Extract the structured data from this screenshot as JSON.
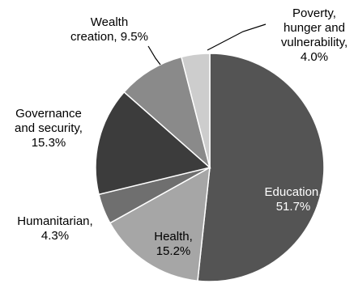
{
  "chart_data": {
    "type": "pie",
    "title": "",
    "start_angle_deg": 0,
    "direction": "clockwise",
    "slices": [
      {
        "label_lines": [
          "Education,",
          "51.7%"
        ],
        "category": "Education",
        "value": 51.7,
        "color": "#545454",
        "label_color": "#ffffff"
      },
      {
        "label_lines": [
          "Health,",
          "15.2%"
        ],
        "category": "Health",
        "value": 15.2,
        "color": "#a6a6a6",
        "label_color": "#000000"
      },
      {
        "label_lines": [
          "Humanitarian,",
          "4.3%"
        ],
        "category": "Humanitarian",
        "value": 4.3,
        "color": "#6f6f6f",
        "label_color": "#000000"
      },
      {
        "label_lines": [
          "Governance",
          "and security,",
          "15.3%"
        ],
        "category": "Governance and security",
        "value": 15.3,
        "color": "#3c3c3c",
        "label_color": "#000000"
      },
      {
        "label_lines": [
          "Wealth",
          "creation, 9.5%"
        ],
        "category": "Wealth creation",
        "value": 9.5,
        "color": "#8a8a8a",
        "label_color": "#000000"
      },
      {
        "label_lines": [
          "Poverty,",
          "hunger and",
          "vulnerability,",
          "4.0%"
        ],
        "category": "Poverty, hunger and vulnerability",
        "value": 4.0,
        "color": "#cdcdcd",
        "label_color": "#000000"
      }
    ]
  }
}
